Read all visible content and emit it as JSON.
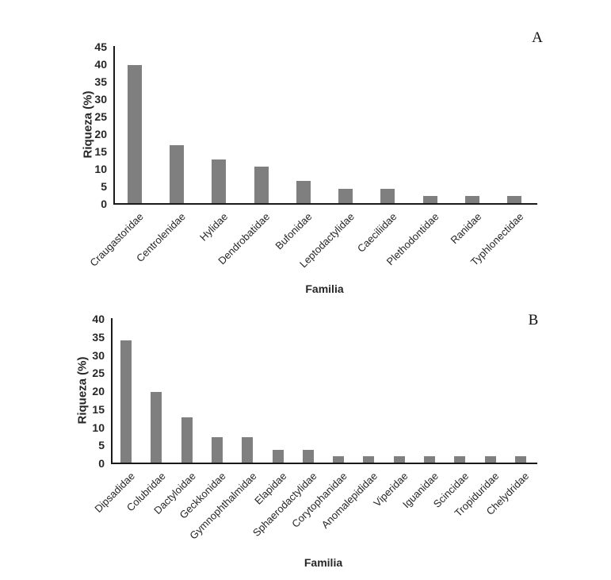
{
  "colors": {
    "bar": "#7f7f7f",
    "axis": "#1a1a1a",
    "text": "#262626",
    "background": "#ffffff"
  },
  "chart_data": [
    {
      "type": "bar",
      "panel_label": "A",
      "title": "",
      "xlabel": "Familia",
      "ylabel": "Riqueza (%)",
      "ylim": [
        0,
        45
      ],
      "yticks": [
        0,
        5,
        10,
        15,
        20,
        25,
        30,
        35,
        40,
        45
      ],
      "grid": false,
      "legend": false,
      "bar_color": "#7f7f7f",
      "categories": [
        "Craugastoridae",
        "Centrolenidae",
        "Hylidae",
        "Dendrobatidae",
        "Bufonidae",
        "Leptodactylidae",
        "Caeciliidae",
        "Plethodontidae",
        "Ranidae",
        "Typhlonectidae"
      ],
      "values": [
        39.6,
        16.7,
        12.5,
        10.4,
        6.3,
        4.2,
        4.2,
        2.1,
        2.1,
        2.1
      ]
    },
    {
      "type": "bar",
      "panel_label": "B",
      "title": "",
      "xlabel": "Familia",
      "ylabel": "Riqueza (%)",
      "ylim": [
        0,
        40
      ],
      "yticks": [
        0,
        5,
        10,
        15,
        20,
        25,
        30,
        35,
        40
      ],
      "grid": false,
      "legend": false,
      "bar_color": "#7f7f7f",
      "categories": [
        "Dipsadidae",
        "Colubridae",
        "Dactyloidae",
        "Geckkonidae",
        "Gymnophthalmidae",
        "Elapidae",
        "Sphaerodactylidae",
        "Corytophanidae",
        "Anomalepididae",
        "Viperidae",
        "Iguanidae",
        "Scincidae",
        "Tropiduridae",
        "Chelydridae"
      ],
      "values": [
        33.9,
        19.6,
        12.5,
        7.1,
        7.1,
        3.6,
        3.6,
        1.8,
        1.8,
        1.8,
        1.8,
        1.8,
        1.8,
        1.8
      ]
    }
  ]
}
